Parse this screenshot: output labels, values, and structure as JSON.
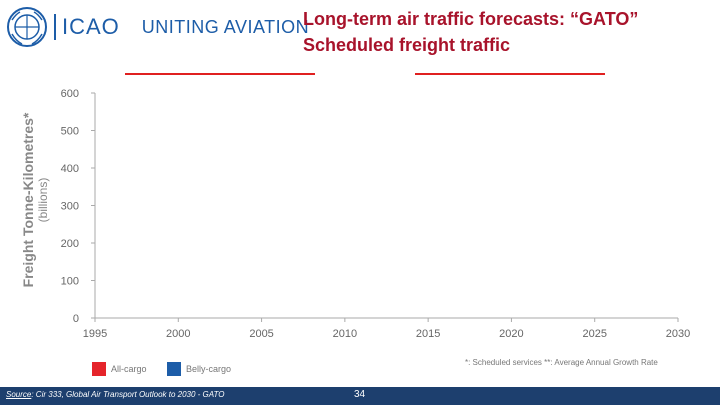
{
  "header": {
    "logo_text": "ICAO",
    "tagline": "UNITING AVIATION",
    "title_line1": "Long-term air traffic forecasts: “GATO”",
    "title_line2": "Scheduled freight traffic"
  },
  "chart_data": {
    "type": "bar",
    "ylabel_main": "Freight Tonne-Kilometres*",
    "ylabel_unit": "(billions)",
    "x_ticks": [
      "1995",
      "2000",
      "2005",
      "2010",
      "2015",
      "2020",
      "2025",
      "2030"
    ],
    "y_ticks": [
      "0",
      "100",
      "200",
      "300",
      "400",
      "500",
      "600"
    ],
    "xlim": [
      1995,
      2030
    ],
    "ylim": [
      0,
      600
    ],
    "series": [
      {
        "name": "All-cargo",
        "color": "#e5242b",
        "values": []
      },
      {
        "name": "Belly-cargo",
        "color": "#1d5da8",
        "values": []
      }
    ],
    "grid": false,
    "legend_position": "bottom-left"
  },
  "notes": "*: Scheduled services   **: Average Annual Growth Rate",
  "footer": {
    "source_label": "Source",
    "source_text": ": Cir 333, Global Air Transport Outlook to 2030 - GATO",
    "page_number": "34"
  }
}
